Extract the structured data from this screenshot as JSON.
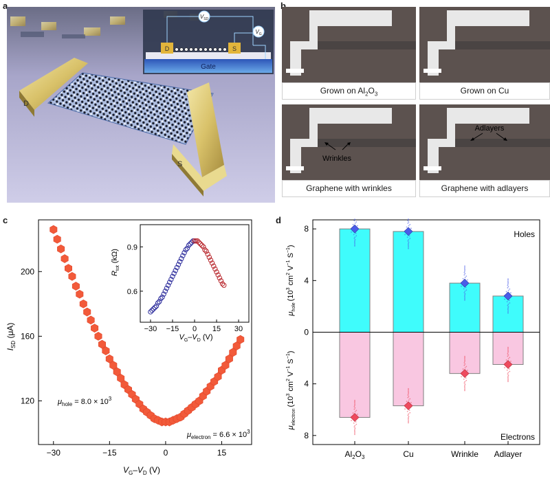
{
  "panel_labels": {
    "a": "a",
    "b": "b",
    "c": "c",
    "d": "d"
  },
  "panel_a": {
    "drain_label": "D",
    "source_label": "S",
    "inset_drain": "D",
    "inset_source": "S",
    "gate_label": "Gate",
    "v_sd_symbol": "V",
    "v_sd_sub": "SD",
    "v_g_symbol": "V",
    "v_g_sub": "G"
  },
  "panel_b": {
    "captions": {
      "al2o3_pre": "Grown on Al",
      "al2o3_sub": "2",
      "al2o3_post": "O",
      "al2o3_sub2": "3",
      "cu": "Grown on Cu",
      "wrinkles": "Graphene with wrinkles",
      "adlayers": "Graphene with adlayers"
    },
    "annotations": {
      "wrinkles": "Wrinkles",
      "adlayers": "Adlayers"
    }
  },
  "chart_data": [
    {
      "type": "scatter",
      "panel": "c",
      "xlabel": "VG–VD (V)",
      "ylabel": "ISD (μA)",
      "xlim": [
        -34,
        23
      ],
      "ylim": [
        93,
        232
      ],
      "xticks": [
        -30,
        -15,
        0,
        15
      ],
      "yticks": [
        120,
        160,
        200
      ],
      "x": [
        -30,
        -29,
        -28,
        -27,
        -26,
        -25,
        -24,
        -23,
        -22,
        -21,
        -20,
        -19,
        -18,
        -17,
        -16,
        -15,
        -14,
        -13,
        -12,
        -11,
        -10,
        -9,
        -8,
        -7,
        -6,
        -5,
        -4,
        -3,
        -2,
        -1,
        0,
        1,
        2,
        3,
        4,
        5,
        6,
        7,
        8,
        9,
        10,
        11,
        12,
        13,
        14,
        15,
        16,
        17,
        18,
        19,
        20
      ],
      "y": [
        226,
        220,
        214,
        208,
        202,
        197,
        191,
        186,
        180,
        175,
        170,
        165,
        160,
        155,
        151,
        146,
        142,
        138,
        134,
        130,
        127,
        124,
        121,
        118,
        115,
        113,
        111,
        109,
        108,
        107,
        107,
        107,
        108,
        109,
        110,
        112,
        114,
        116,
        118,
        120,
        123,
        126,
        129,
        132,
        135,
        139,
        142,
        146,
        150,
        154,
        158
      ],
      "color": "#f25a3a",
      "annotations": {
        "hole": {
          "symbol": "μ",
          "sub": "hole",
          "value": " = 8.0 × 10",
          "exp": "3"
        },
        "electron": {
          "symbol": "μ",
          "sub": "electron",
          "value": " = 6.6 × 10",
          "exp": "3"
        }
      },
      "inset": {
        "type": "scatter",
        "xlabel": "VG–VD (V)",
        "ylabel": "Rtot (kΩ)",
        "xlim": [
          -37,
          37
        ],
        "ylim": [
          0.39,
          1.05
        ],
        "xticks": [
          -30,
          -15,
          0,
          15,
          30
        ],
        "yticks": [
          0.6,
          0.9
        ],
        "series": [
          {
            "name": "hole branch",
            "color": "#2d2d9c",
            "x": [
              -30,
              -29,
              -28,
              -27,
              -26,
              -25,
              -24,
              -23,
              -22,
              -21,
              -20,
              -19,
              -18,
              -17,
              -16,
              -15,
              -14,
              -13,
              -12,
              -11,
              -10,
              -9,
              -8,
              -7,
              -6,
              -5,
              -4,
              -3,
              -2,
              -1,
              0
            ],
            "y": [
              0.46,
              0.47,
              0.48,
              0.49,
              0.5,
              0.52,
              0.53,
              0.55,
              0.56,
              0.58,
              0.6,
              0.62,
              0.64,
              0.66,
              0.68,
              0.7,
              0.72,
              0.74,
              0.76,
              0.78,
              0.8,
              0.82,
              0.84,
              0.86,
              0.88,
              0.89,
              0.91,
              0.92,
              0.93,
              0.94,
              0.94
            ]
          },
          {
            "name": "electron branch",
            "color": "#b8262c",
            "x": [
              0,
              1,
              2,
              3,
              4,
              5,
              6,
              7,
              8,
              9,
              10,
              11,
              12,
              13,
              14,
              15,
              16,
              17,
              18,
              19,
              20
            ],
            "y": [
              0.94,
              0.94,
              0.94,
              0.93,
              0.92,
              0.91,
              0.9,
              0.88,
              0.87,
              0.85,
              0.83,
              0.81,
              0.79,
              0.77,
              0.75,
              0.73,
              0.71,
              0.69,
              0.67,
              0.65,
              0.64
            ]
          }
        ]
      }
    },
    {
      "type": "bar",
      "panel": "d",
      "categories": [
        "Al2O3",
        "Cu",
        "Wrinkle",
        "Adlayer"
      ],
      "category_sub": [
        [
          "Al",
          "2",
          "O",
          "3"
        ],
        [
          "Cu"
        ],
        [
          "Wrinkle"
        ],
        [
          "Adlayer"
        ]
      ],
      "series": [
        {
          "name": "Holes",
          "values": [
            8.0,
            7.8,
            3.8,
            2.8
          ],
          "color": "#3ffcfc"
        },
        {
          "name": "Electrons",
          "values": [
            6.6,
            5.7,
            3.2,
            2.5
          ],
          "color": "#f9c7e1"
        }
      ],
      "ylim": [
        -8.7,
        8.7
      ],
      "yticks_top": [
        0,
        4,
        8
      ],
      "yticks_bottom": [
        4,
        8
      ],
      "ylabel_top": {
        "symbol": "μ",
        "sub": "hole",
        "units": "(10",
        "exp": "3",
        "units2": " cm",
        "exp2": "2",
        "units3": " V",
        "exp3": "−1",
        "units4": " S",
        "exp4": "−1",
        "close": ")"
      },
      "ylabel_bottom": {
        "symbol": "μ",
        "sub": "electron",
        "units": "(10",
        "exp": "3",
        "units2": " cm",
        "exp2": "2",
        "units3": " V",
        "exp3": "−1",
        "units4": " S",
        "exp4": "−1",
        "close": ")"
      },
      "labels": {
        "holes": "Holes",
        "electrons": "Electrons"
      },
      "colors": {
        "hole_marker": "#4a5ce8",
        "electron_marker": "#ee4a5e",
        "bar_edge": "#7f7f7f"
      }
    }
  ]
}
